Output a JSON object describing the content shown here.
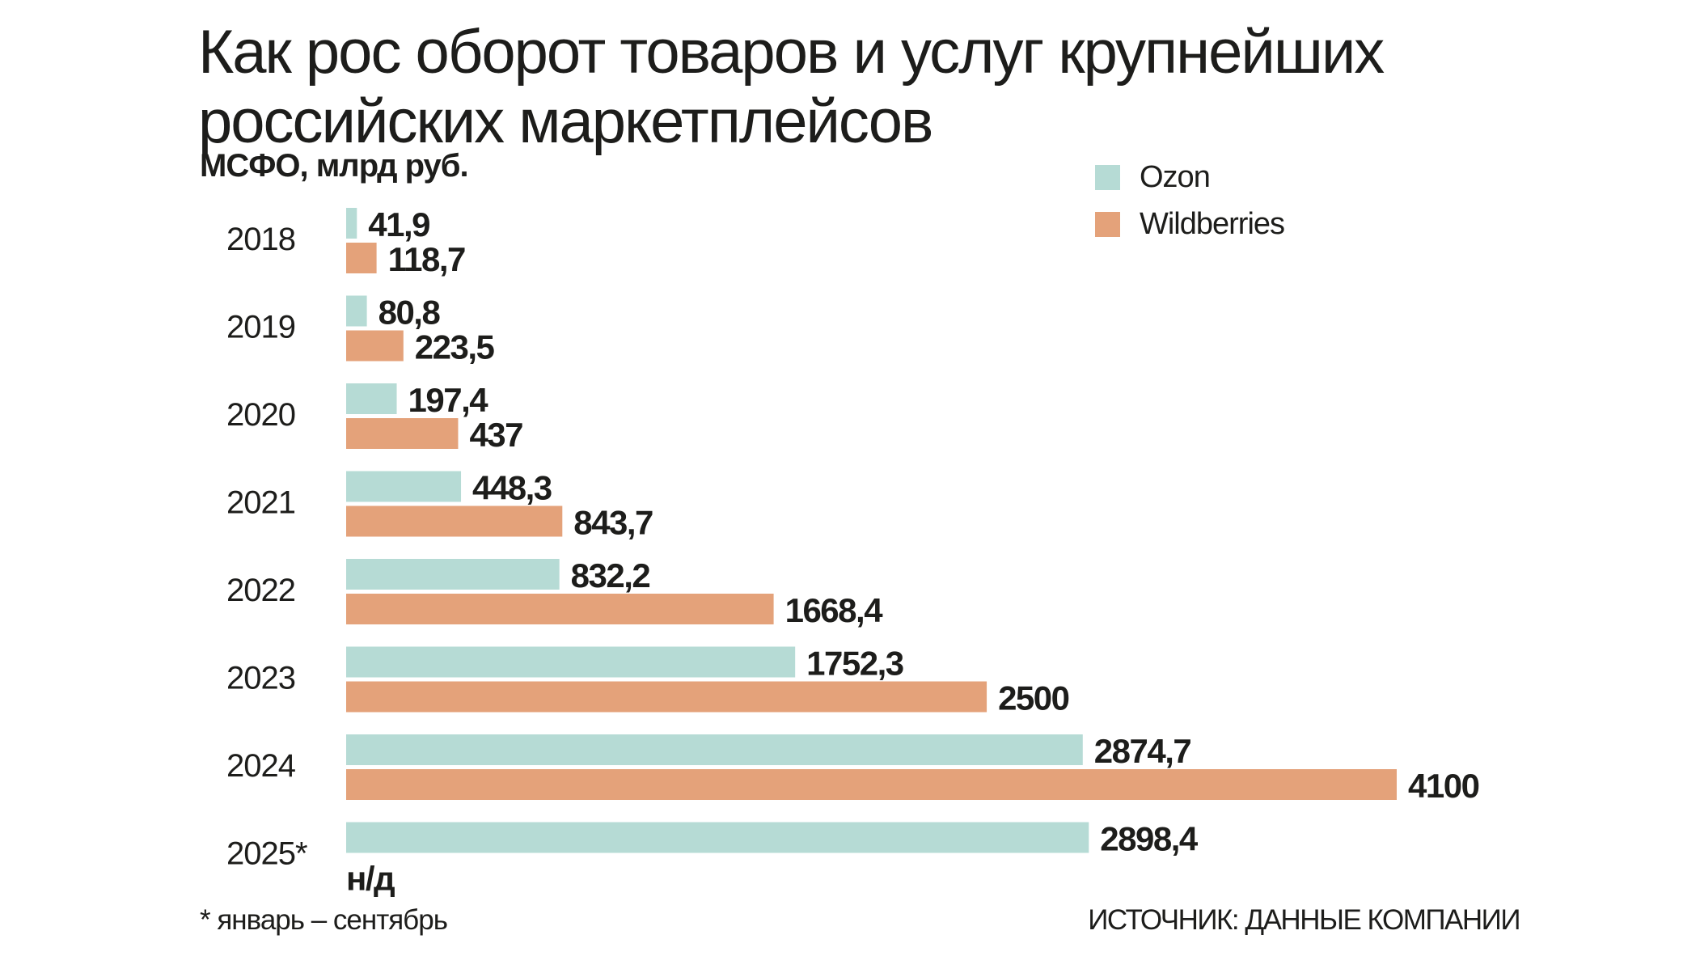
{
  "chart_data": {
    "type": "bar",
    "orientation": "horizontal",
    "title": "Как рос оборот товаров и услуг крупнейших российских маркетплейсов",
    "subtitle": "МСФО, млрд руб.",
    "categories": [
      "2018",
      "2019",
      "2020",
      "2021",
      "2022",
      "2023",
      "2024",
      "2025*"
    ],
    "series": [
      {
        "name": "Ozon",
        "color": "#b6dbd5",
        "values": [
          41.9,
          80.8,
          197.4,
          448.3,
          832.2,
          1752.3,
          2874.7,
          2898.4
        ],
        "labels": [
          "41,9",
          "80,8",
          "197,4",
          "448,3",
          "832,2",
          "1752,3",
          "2874,7",
          "2898,4"
        ]
      },
      {
        "name": "Wildberries",
        "color": "#e4a27a",
        "values": [
          118.7,
          223.5,
          437,
          843.7,
          1668.4,
          2500,
          4100,
          null
        ],
        "labels": [
          "118,7",
          "223,5",
          "437",
          "843,7",
          "1668,4",
          "2500",
          "4100",
          "н/д"
        ]
      }
    ],
    "xlim": [
      0,
      4100
    ],
    "grid": false,
    "legend_placement": "top-right",
    "footnote": "* январь – сентябрь",
    "source": "Источник: данные компании"
  }
}
